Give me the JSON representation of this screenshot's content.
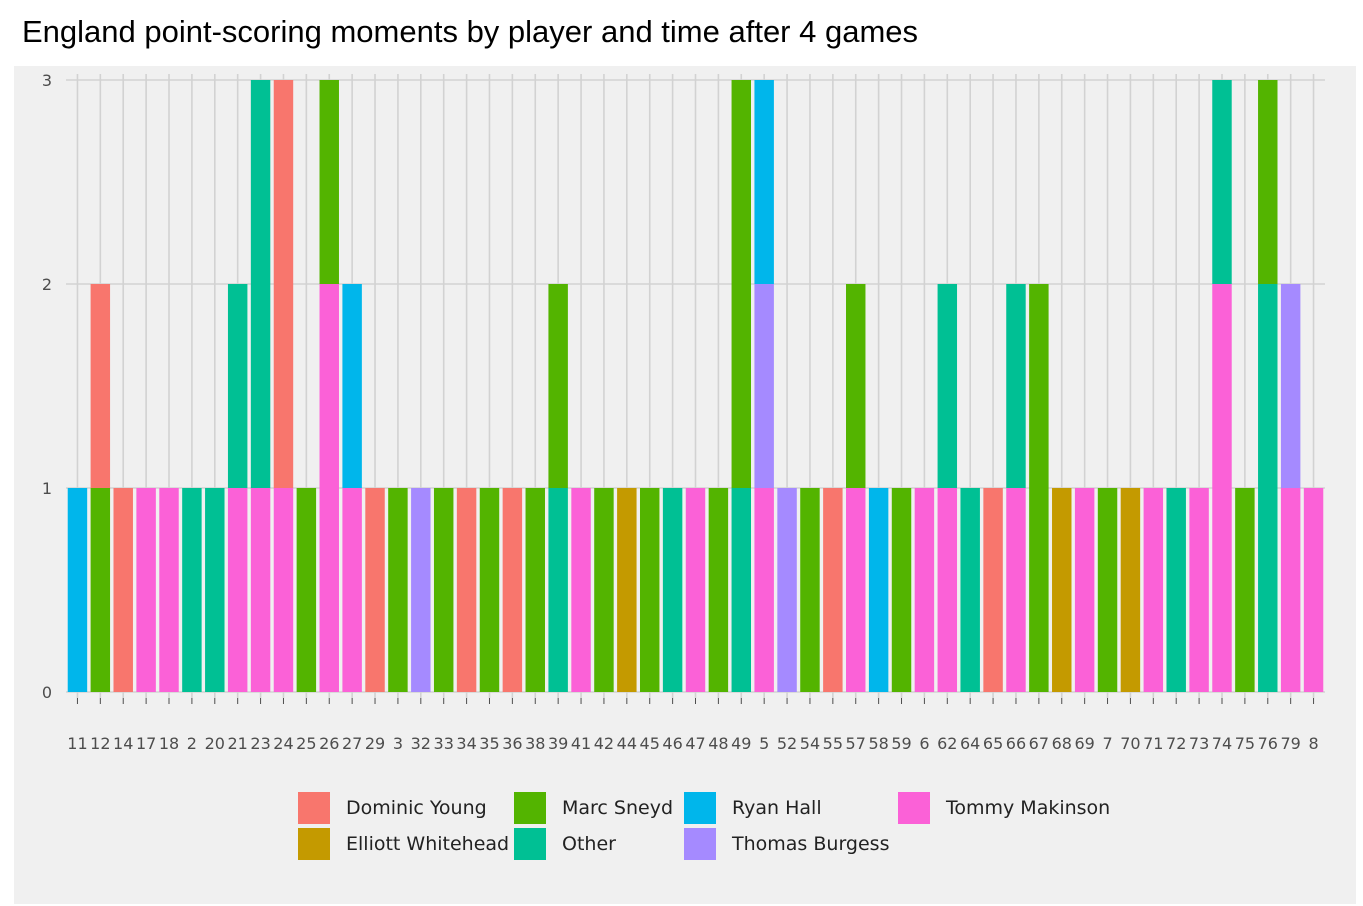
{
  "title": "England point-scoring moments by player and time after 4 games",
  "chart_data": {
    "type": "bar",
    "stacked": true,
    "title": "England point-scoring moments by player and time after 4 games",
    "xlabel": "",
    "ylabel": "",
    "ylim": [
      0,
      3
    ],
    "yticks": [
      "0",
      "1",
      "2",
      "3"
    ],
    "grid": true,
    "legend_position": "bottom",
    "categories": [
      "11",
      "12",
      "14",
      "17",
      "18",
      "2",
      "20",
      "21",
      "23",
      "24",
      "25",
      "26",
      "27",
      "29",
      "3",
      "32",
      "33",
      "34",
      "35",
      "36",
      "38",
      "39",
      "41",
      "42",
      "44",
      "45",
      "46",
      "47",
      "48",
      "49",
      "5",
      "52",
      "54",
      "55",
      "57",
      "58",
      "59",
      "6",
      "62",
      "64",
      "65",
      "66",
      "67",
      "68",
      "69",
      "7",
      "70",
      "71",
      "72",
      "73",
      "74",
      "75",
      "76",
      "79",
      "8"
    ],
    "tick_labels": [
      "11",
      "12",
      "14",
      "17",
      "18",
      "2",
      "20",
      "21",
      "23",
      "24",
      "25",
      "26",
      "27",
      "29",
      "3",
      "32",
      "33",
      "34",
      "35",
      "36",
      "38",
      "39",
      "41",
      "42",
      "44",
      "45",
      "46",
      "47",
      "48",
      "49",
      "5",
      "52",
      "54",
      "55",
      "57",
      "58",
      "59",
      "6",
      "62",
      "64",
      "65",
      "66",
      "67",
      "68",
      "69",
      "7",
      "70",
      "71",
      "72",
      "73",
      "74",
      "75",
      "76",
      "79",
      "8"
    ],
    "legend": [
      {
        "name": "Dominic Young",
        "color": "#F8766D"
      },
      {
        "name": "Elliott Whitehead",
        "color": "#C49A00"
      },
      {
        "name": "Marc Sneyd",
        "color": "#53B400"
      },
      {
        "name": "Other",
        "color": "#00C094"
      },
      {
        "name": "Ryan Hall",
        "color": "#00B6EB"
      },
      {
        "name": "Thomas Burgess",
        "color": "#A58AFF"
      },
      {
        "name": "Tommy Makinson",
        "color": "#FB61D7"
      }
    ],
    "series": [
      {
        "name": "Dominic Young",
        "color": "#F8766D",
        "values": [
          0,
          1,
          1,
          0,
          0,
          0,
          0,
          0,
          0,
          2,
          0,
          0,
          0,
          1,
          0,
          0,
          0,
          1,
          0,
          1,
          0,
          0,
          0,
          0,
          0,
          0,
          0,
          0,
          0,
          0,
          0,
          0,
          0,
          1,
          0,
          0,
          0,
          0,
          0,
          0,
          1,
          0,
          0,
          0,
          0,
          0,
          0,
          0,
          0,
          0,
          0,
          0,
          0,
          0,
          0
        ]
      },
      {
        "name": "Elliott Whitehead",
        "color": "#C49A00",
        "values": [
          0,
          0,
          0,
          0,
          0,
          0,
          0,
          0,
          0,
          0,
          0,
          0,
          0,
          0,
          0,
          0,
          0,
          0,
          0,
          0,
          0,
          0,
          0,
          0,
          1,
          0,
          0,
          0,
          0,
          0,
          0,
          0,
          0,
          0,
          0,
          0,
          0,
          0,
          0,
          0,
          0,
          0,
          0,
          1,
          0,
          0,
          1,
          0,
          0,
          0,
          0,
          0,
          0,
          0,
          0
        ]
      },
      {
        "name": "Marc Sneyd",
        "color": "#53B400",
        "values": [
          0,
          1,
          0,
          0,
          0,
          0,
          0,
          0,
          0,
          0,
          1,
          1,
          0,
          0,
          1,
          0,
          1,
          0,
          1,
          0,
          1,
          1,
          0,
          1,
          0,
          1,
          0,
          0,
          1,
          2,
          0,
          0,
          1,
          0,
          1,
          0,
          1,
          0,
          0,
          0,
          0,
          0,
          2,
          0,
          0,
          1,
          0,
          0,
          0,
          0,
          0,
          1,
          1,
          0,
          0
        ]
      },
      {
        "name": "Other",
        "color": "#00C094",
        "values": [
          0,
          0,
          0,
          0,
          0,
          1,
          1,
          1,
          2,
          0,
          0,
          0,
          0,
          0,
          0,
          0,
          0,
          0,
          0,
          0,
          0,
          1,
          0,
          0,
          0,
          0,
          1,
          0,
          0,
          1,
          0,
          0,
          0,
          0,
          0,
          0,
          0,
          0,
          1,
          1,
          0,
          1,
          0,
          0,
          0,
          0,
          0,
          0,
          1,
          0,
          1,
          0,
          2,
          0,
          0
        ]
      },
      {
        "name": "Ryan Hall",
        "color": "#00B6EB",
        "values": [
          1,
          0,
          0,
          0,
          0,
          0,
          0,
          0,
          0,
          0,
          0,
          0,
          1,
          0,
          0,
          0,
          0,
          0,
          0,
          0,
          0,
          0,
          0,
          0,
          0,
          0,
          0,
          0,
          0,
          0,
          1,
          0,
          0,
          0,
          0,
          1,
          0,
          0,
          0,
          0,
          0,
          0,
          0,
          0,
          0,
          0,
          0,
          0,
          0,
          0,
          0,
          0,
          0,
          0,
          0
        ]
      },
      {
        "name": "Thomas Burgess",
        "color": "#A58AFF",
        "values": [
          0,
          0,
          0,
          0,
          0,
          0,
          0,
          0,
          0,
          0,
          0,
          0,
          0,
          0,
          0,
          1,
          0,
          0,
          0,
          0,
          0,
          0,
          0,
          0,
          0,
          0,
          0,
          0,
          0,
          0,
          1,
          1,
          0,
          0,
          0,
          0,
          0,
          0,
          0,
          0,
          0,
          0,
          0,
          0,
          0,
          0,
          0,
          0,
          0,
          0,
          0,
          0,
          0,
          1,
          0
        ]
      },
      {
        "name": "Tommy Makinson",
        "color": "#FB61D7",
        "values": [
          0,
          0,
          0,
          1,
          1,
          0,
          0,
          1,
          1,
          1,
          0,
          2,
          1,
          0,
          0,
          0,
          0,
          0,
          0,
          0,
          0,
          0,
          1,
          0,
          0,
          0,
          0,
          1,
          0,
          0,
          1,
          0,
          0,
          0,
          1,
          0,
          0,
          1,
          1,
          0,
          0,
          1,
          0,
          0,
          1,
          0,
          0,
          1,
          0,
          1,
          2,
          0,
          0,
          1,
          1
        ]
      }
    ]
  }
}
